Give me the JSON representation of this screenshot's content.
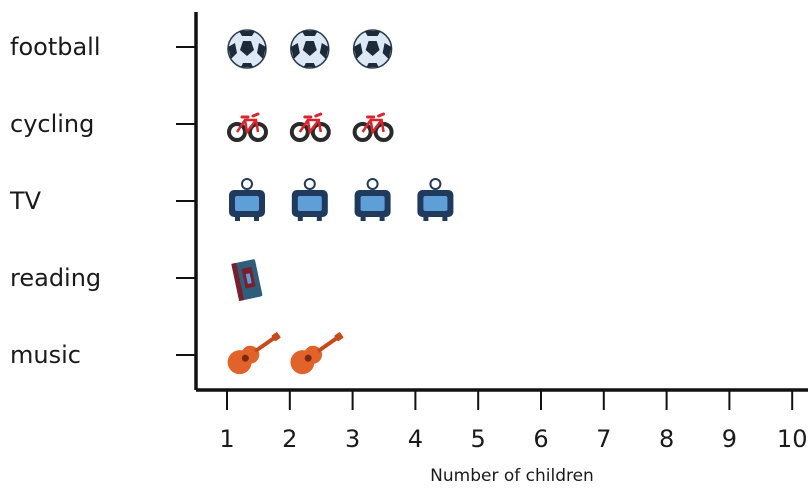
{
  "chart_data": {
    "type": "pictogram",
    "orientation": "horizontal",
    "title": "",
    "xlabel": "Number of children",
    "ylabel": "",
    "xlim": [
      1,
      10
    ],
    "x_ticks": [
      "1",
      "2",
      "3",
      "4",
      "5",
      "6",
      "7",
      "8",
      "9",
      "10"
    ],
    "grid": false,
    "legend": "none",
    "categories": [
      "football",
      "cycling",
      "TV",
      "reading",
      "music"
    ],
    "values": [
      3,
      3,
      4,
      1,
      2
    ],
    "icons": [
      "football-icon",
      "bicycle-icon",
      "television-icon",
      "book-icon",
      "guitar-icon"
    ]
  },
  "colors": {
    "axis": "#111111",
    "text": "#1a1a1a",
    "ball_face": "#dce8f5",
    "ball_patch": "#1c2a3a",
    "bike_frame": "#d8262c",
    "bike_wheel": "#2a2a2a",
    "tv_body": "#1f3a5c",
    "tv_screen": "#5f9fd8",
    "book_cover": "#2f5e7a",
    "book_spine": "#7a1e2c",
    "guitar_body": "#e2632a",
    "guitar_neck": "#c64a1a"
  }
}
